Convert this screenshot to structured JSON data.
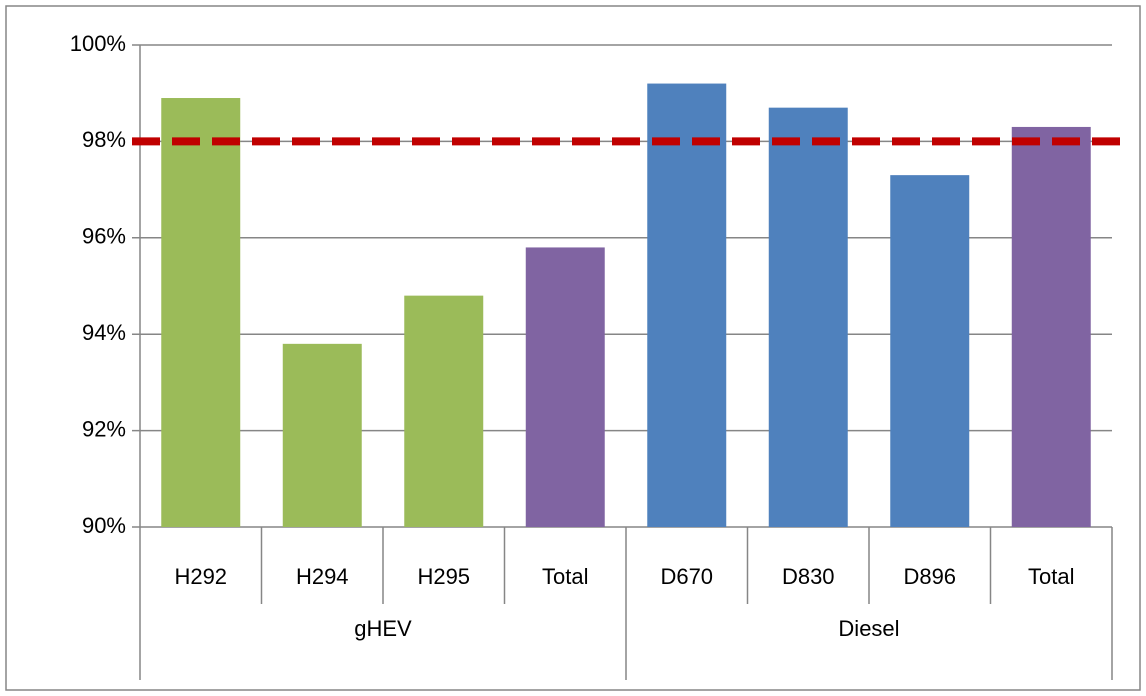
{
  "chart_data": {
    "type": "bar",
    "groups": [
      {
        "name": "gHEV",
        "categories": [
          "H292",
          "H294",
          "H295",
          "Total"
        ],
        "values": [
          98.9,
          93.8,
          94.8,
          95.8
        ],
        "colors": [
          "#9bbb59",
          "#9bbb59",
          "#9bbb59",
          "#8064a2"
        ]
      },
      {
        "name": "Diesel",
        "categories": [
          "D670",
          "D830",
          "D896",
          "Total"
        ],
        "values": [
          99.2,
          98.7,
          97.3,
          98.3
        ],
        "colors": [
          "#4f81bd",
          "#4f81bd",
          "#4f81bd",
          "#8064a2"
        ]
      }
    ],
    "ylim": [
      90,
      100
    ],
    "yticks": [
      {
        "value": 90,
        "label": "90%"
      },
      {
        "value": 92,
        "label": "92%"
      },
      {
        "value": 94,
        "label": "94%"
      },
      {
        "value": 96,
        "label": "96%"
      },
      {
        "value": 98,
        "label": "98%"
      },
      {
        "value": 100,
        "label": "100%"
      }
    ],
    "grid": true,
    "reference_line": {
      "value": 98,
      "color": "#c00000"
    }
  }
}
